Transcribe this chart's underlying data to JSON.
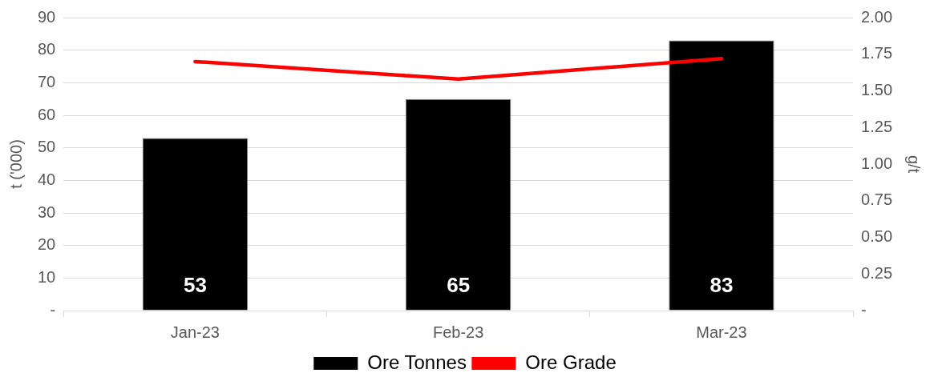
{
  "chart_data": {
    "type": "bar",
    "categories": [
      "Jan-23",
      "Feb-23",
      "Mar-23"
    ],
    "series": [
      {
        "name": "Ore Tonnes",
        "color": "#000000",
        "values": [
          53,
          65,
          83
        ],
        "value_labels": [
          "53",
          "65",
          "83"
        ]
      },
      {
        "name": "Ore Grade",
        "type": "line",
        "axis": "y2",
        "color": "#ff0000",
        "values": [
          1.7,
          1.58,
          1.72
        ]
      }
    ],
    "ylabel": "t ('000)",
    "y2label": "g/t",
    "ylim": [
      0,
      90
    ],
    "yticks": [
      {
        "value": 0,
        "label": "-"
      },
      10,
      20,
      30,
      40,
      50,
      60,
      70,
      80,
      90
    ],
    "y2lim": [
      0,
      2
    ],
    "y2ticks": [
      {
        "value": 0,
        "label": "-"
      },
      {
        "value": 0.25,
        "label": "0.25"
      },
      {
        "value": 0.5,
        "label": "0.50"
      },
      {
        "value": 0.75,
        "label": "0.75"
      },
      {
        "value": 1,
        "label": "1.00"
      },
      {
        "value": 1.25,
        "label": "1.25"
      },
      {
        "value": 1.5,
        "label": "1.50"
      },
      {
        "value": 1.75,
        "label": "1.75"
      },
      {
        "value": 2,
        "label": "2.00"
      }
    ],
    "grid": "y",
    "legend": "bottom",
    "marker": "none",
    "line_style": "solid"
  }
}
